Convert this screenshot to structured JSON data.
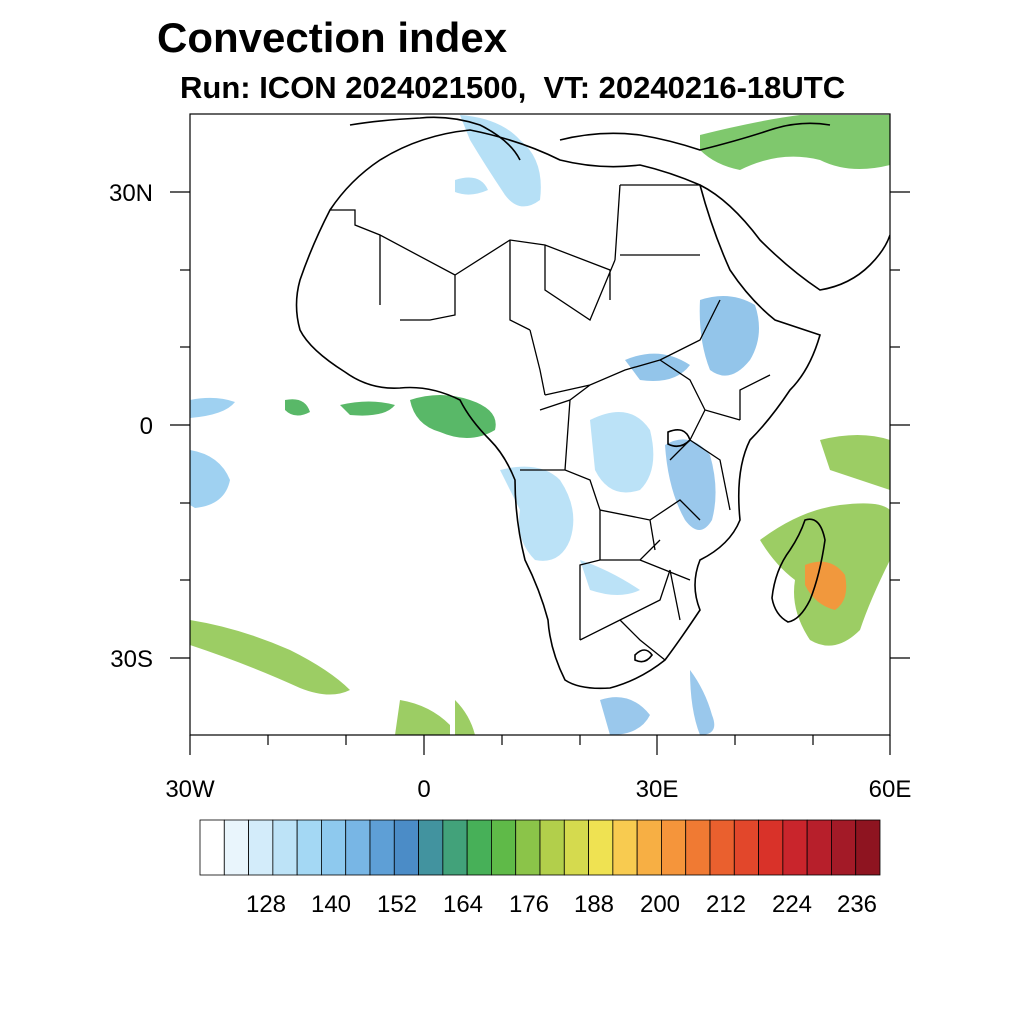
{
  "title": "Convection index",
  "subtitle": "Run: ICON 2024021500,  VT: 20240216-18UTC",
  "axes": {
    "lon_labels": [
      "30W",
      "0",
      "30E",
      "60E"
    ],
    "lat_labels": [
      "30N",
      "0",
      "30S"
    ]
  },
  "colorbar": {
    "labels": [
      "128",
      "140",
      "152",
      "164",
      "176",
      "188",
      "200",
      "212",
      "224",
      "236"
    ],
    "colors": [
      "#ffffff",
      "#e9f5fc",
      "#d3ecfa",
      "#bde3f7",
      "#a4d8f4",
      "#8ec9ee",
      "#78b6e5",
      "#5e9fd6",
      "#4b8cc7",
      "#42939f",
      "#42a27a",
      "#47b058",
      "#5fba48",
      "#8bc449",
      "#b2cf4b",
      "#d5da4e",
      "#efe252",
      "#f8cb50",
      "#f7af44",
      "#f5953b",
      "#f07a33",
      "#ea602e",
      "#e2472b",
      "#d93229",
      "#c9252c",
      "#b71f2b",
      "#a31a27",
      "#8e1420"
    ]
  },
  "fields": [
    {
      "name": "convection-area-north-atlantic",
      "color": "#8ec9ee"
    },
    {
      "name": "convection-area-mediterranean",
      "color": "#a4d8f4"
    },
    {
      "name": "convection-area-middle-east",
      "color": "#5fba48"
    },
    {
      "name": "convection-area-gulf-of-guinea",
      "color": "#47b058"
    },
    {
      "name": "convection-area-congo",
      "color": "#a4d8f4"
    },
    {
      "name": "convection-area-ethiopia",
      "color": "#78b6e5"
    },
    {
      "name": "convection-area-east-africa",
      "color": "#78b6e5"
    },
    {
      "name": "convection-area-indian-ocean",
      "color": "#8bc449"
    },
    {
      "name": "convection-area-madagascar-core",
      "color": "#f5953b"
    },
    {
      "name": "convection-area-south-atlantic",
      "color": "#8bc449"
    },
    {
      "name": "convection-area-mozambique-channel",
      "color": "#78b6e5"
    }
  ]
}
